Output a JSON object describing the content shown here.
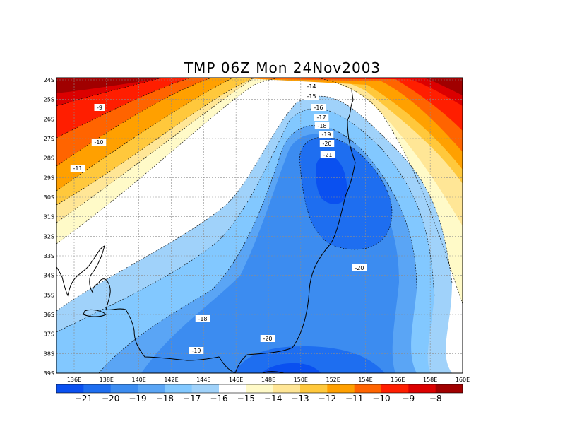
{
  "title": "TMP 06Z Mon 24Nov2003",
  "lat_labels": [
    "24S",
    "25S",
    "26S",
    "27S",
    "28S",
    "29S",
    "30S",
    "31S",
    "32S",
    "33S",
    "34S",
    "35S",
    "36S",
    "37S",
    "38S",
    "39S"
  ],
  "lon_labels": [
    "136E",
    "138E",
    "140E",
    "142E",
    "144E",
    "146E",
    "148E",
    "150E",
    "152E",
    "154E",
    "156E",
    "158E",
    "160E"
  ],
  "contour_labels": [
    {
      "text": "-9"
    },
    {
      "text": "-10"
    },
    {
      "text": "-11"
    },
    {
      "text": "-14"
    },
    {
      "text": "-15"
    },
    {
      "text": "-16"
    },
    {
      "text": "-17"
    },
    {
      "text": "-18"
    },
    {
      "text": "-19"
    },
    {
      "text": "-20"
    },
    {
      "text": "-21"
    },
    {
      "text": "-20"
    },
    {
      "text": "-18"
    },
    {
      "text": "-19"
    },
    {
      "text": "-20"
    }
  ],
  "colorbar": {
    "labels": [
      "-21",
      "-20",
      "-19",
      "-18",
      "-17",
      "-16",
      "-15",
      "-14",
      "-13",
      "-12",
      "-11",
      "-10",
      "-9",
      "-8"
    ],
    "colors": [
      "#0a50f0",
      "#1e6ef0",
      "#3c8cf0",
      "#5aa5f5",
      "#82c8ff",
      "#a0d2fa",
      "#ffffff",
      "#fffac8",
      "#ffe696",
      "#ffc83c",
      "#ffa000",
      "#ff6400",
      "#ff1e00",
      "#dc0000",
      "#a00000"
    ]
  },
  "colors": {
    "d1": "#a00000",
    "d2": "#dc0000",
    "d3": "#ff1e00",
    "d4": "#ff6400",
    "d5": "#ffa000",
    "d6": "#ffc83c",
    "d7": "#ffe696",
    "d8": "#fffac8",
    "n": "#ffffff",
    "c1": "#a0d2fa",
    "c2": "#82c8ff",
    "c3": "#5aa5f5",
    "c4": "#3c8cf0",
    "c5": "#1e6ef0",
    "c6": "#0a50f0"
  }
}
